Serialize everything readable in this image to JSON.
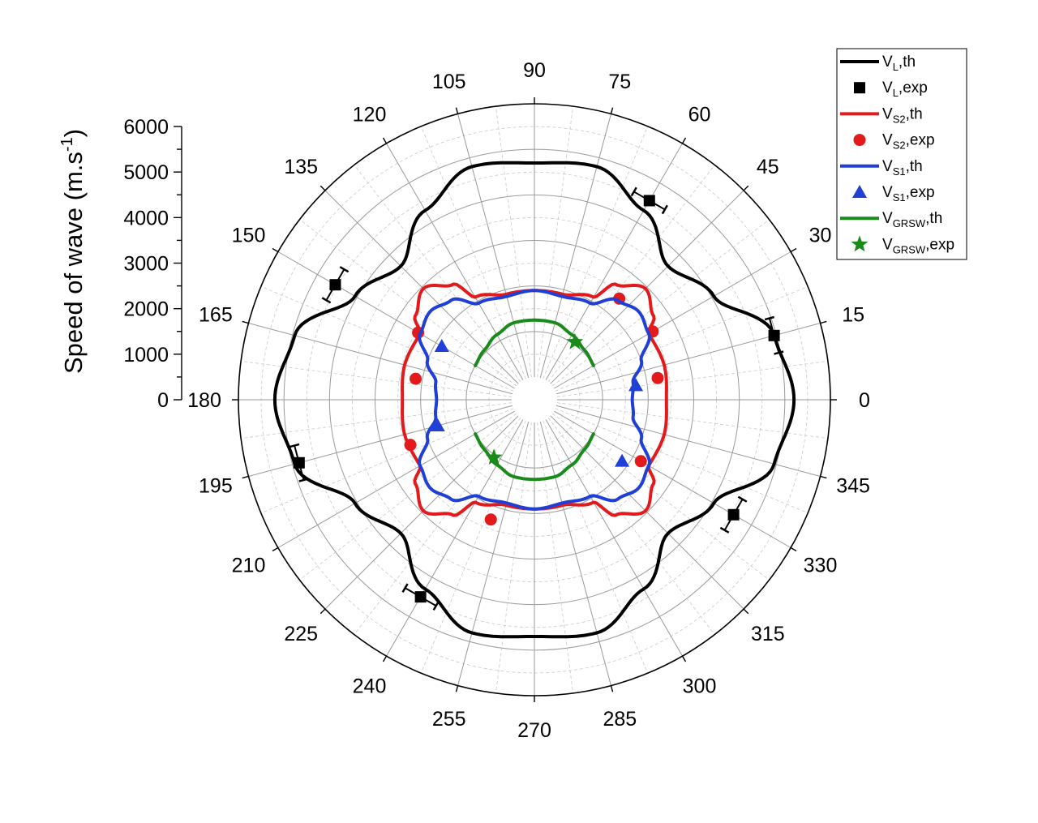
{
  "chart_data": {
    "type": "polar-line-scatter",
    "ylabel": "Speed of wave (m.s",
    "ylabel_sup": "-1",
    "ylabel_close": ")",
    "radial_ticks": [
      "0",
      "1000",
      "2000",
      "3000",
      "4000",
      "5000",
      "6000"
    ],
    "radial_range": [
      0,
      6000
    ],
    "angle_ticks": [
      "0",
      "15",
      "30",
      "45",
      "60",
      "75",
      "90",
      "105",
      "120",
      "135",
      "150",
      "165",
      "180",
      "195",
      "210",
      "225",
      "240",
      "255",
      "270",
      "285",
      "300",
      "315",
      "330",
      "345"
    ],
    "grid": true,
    "legend_position": "top-right",
    "series": [
      {
        "name": "V",
        "sub": "L",
        "suffix": ",th",
        "kind": "line",
        "color": "#000000",
        "points": [
          [
            0,
            5200
          ],
          [
            15,
            4950
          ],
          [
            30,
            4050
          ],
          [
            45,
            3650
          ],
          [
            60,
            4300
          ],
          [
            75,
            4800
          ],
          [
            90,
            4700
          ],
          [
            105,
            4800
          ],
          [
            120,
            4300
          ],
          [
            135,
            3650
          ],
          [
            150,
            4050
          ],
          [
            165,
            4950
          ],
          [
            180,
            5200
          ],
          [
            195,
            4950
          ],
          [
            210,
            4050
          ],
          [
            225,
            3650
          ],
          [
            240,
            4300
          ],
          [
            255,
            4800
          ],
          [
            270,
            4700
          ],
          [
            285,
            4800
          ],
          [
            300,
            4300
          ],
          [
            315,
            3650
          ],
          [
            330,
            4050
          ],
          [
            345,
            4950
          ],
          [
            360,
            5200
          ]
        ]
      },
      {
        "name": "V",
        "sub": "L",
        "suffix": ",exp",
        "kind": "scatter",
        "marker": "square",
        "color": "#000000",
        "points": [
          [
            15,
            4950
          ],
          [
            60,
            4550
          ],
          [
            150,
            4550
          ],
          [
            195,
            4850
          ],
          [
            240,
            4500
          ],
          [
            330,
            4550
          ]
        ]
      },
      {
        "name": "V",
        "sub": "S2",
        "suffix": ",th",
        "kind": "line",
        "color": "#e31a1c",
        "points": [
          [
            0,
            2400
          ],
          [
            15,
            2450
          ],
          [
            30,
            2400
          ],
          [
            35,
            2700
          ],
          [
            45,
            2950
          ],
          [
            55,
            2600
          ],
          [
            60,
            2100
          ],
          [
            75,
            1900
          ],
          [
            90,
            1900
          ],
          [
            105,
            1900
          ],
          [
            120,
            2100
          ],
          [
            125,
            2600
          ],
          [
            135,
            2950
          ],
          [
            145,
            2700
          ],
          [
            150,
            2400
          ],
          [
            165,
            2450
          ],
          [
            180,
            2400
          ],
          [
            195,
            2450
          ],
          [
            210,
            2400
          ],
          [
            215,
            2700
          ],
          [
            225,
            2950
          ],
          [
            235,
            2600
          ],
          [
            240,
            2100
          ],
          [
            255,
            1900
          ],
          [
            270,
            1900
          ],
          [
            285,
            1900
          ],
          [
            300,
            2100
          ],
          [
            305,
            2600
          ],
          [
            315,
            2950
          ],
          [
            325,
            2700
          ],
          [
            330,
            2400
          ],
          [
            345,
            2450
          ],
          [
            360,
            2400
          ]
        ]
      },
      {
        "name": "V",
        "sub": "S2",
        "suffix": ",exp",
        "kind": "scatter",
        "marker": "circle",
        "color": "#e31a1c",
        "points": [
          [
            10,
            2250
          ],
          [
            30,
            2500
          ],
          [
            50,
            2400
          ],
          [
            150,
            2450
          ],
          [
            170,
            2150
          ],
          [
            200,
            2400
          ],
          [
            250,
            2300
          ],
          [
            330,
            2200
          ]
        ]
      },
      {
        "name": "V",
        "sub": "S1",
        "suffix": ",th",
        "kind": "line",
        "color": "#1f3fd6",
        "points": [
          [
            0,
            1650
          ],
          [
            10,
            1700
          ],
          [
            20,
            2000
          ],
          [
            30,
            2400
          ],
          [
            40,
            2500
          ],
          [
            50,
            2350
          ],
          [
            60,
            1950
          ],
          [
            75,
            1850
          ],
          [
            90,
            1900
          ],
          [
            105,
            1850
          ],
          [
            120,
            1950
          ],
          [
            130,
            2350
          ],
          [
            140,
            2500
          ],
          [
            150,
            2400
          ],
          [
            160,
            2000
          ],
          [
            170,
            1700
          ],
          [
            180,
            1650
          ],
          [
            190,
            1700
          ],
          [
            200,
            2000
          ],
          [
            210,
            2400
          ],
          [
            220,
            2500
          ],
          [
            230,
            2350
          ],
          [
            240,
            1950
          ],
          [
            255,
            1850
          ],
          [
            270,
            1900
          ],
          [
            285,
            1850
          ],
          [
            300,
            1950
          ],
          [
            310,
            2350
          ],
          [
            320,
            2500
          ],
          [
            330,
            2400
          ],
          [
            340,
            2000
          ],
          [
            350,
            1700
          ],
          [
            360,
            1650
          ]
        ]
      },
      {
        "name": "V",
        "sub": "S1",
        "suffix": ",exp",
        "kind": "scatter",
        "marker": "triangle",
        "color": "#1f3fd6",
        "points": [
          [
            8,
            1750
          ],
          [
            150,
            1850
          ],
          [
            195,
            1700
          ],
          [
            325,
            1850
          ]
        ]
      },
      {
        "name": "V",
        "sub": "GRSW",
        "suffix": ",th",
        "kind": "line",
        "color": "#1a8a1a",
        "segments": [
          [
            [
              30,
              1000
            ],
            [
              45,
              1050
            ],
            [
              60,
              1150
            ],
            [
              75,
              1250
            ],
            [
              90,
              1250
            ],
            [
              105,
              1250
            ],
            [
              120,
              1150
            ],
            [
              135,
              1050
            ],
            [
              150,
              1000
            ]
          ],
          [
            [
              210,
              1000
            ],
            [
              225,
              1050
            ],
            [
              240,
              1150
            ],
            [
              255,
              1250
            ],
            [
              270,
              1250
            ],
            [
              285,
              1250
            ],
            [
              300,
              1150
            ],
            [
              315,
              1050
            ],
            [
              330,
              1000
            ]
          ]
        ]
      },
      {
        "name": "V",
        "sub": "GRSW",
        "suffix": ",exp",
        "kind": "scatter",
        "marker": "star",
        "color": "#1a8a1a",
        "points": [
          [
            55,
            1050
          ],
          [
            235,
            1050
          ]
        ]
      }
    ]
  }
}
